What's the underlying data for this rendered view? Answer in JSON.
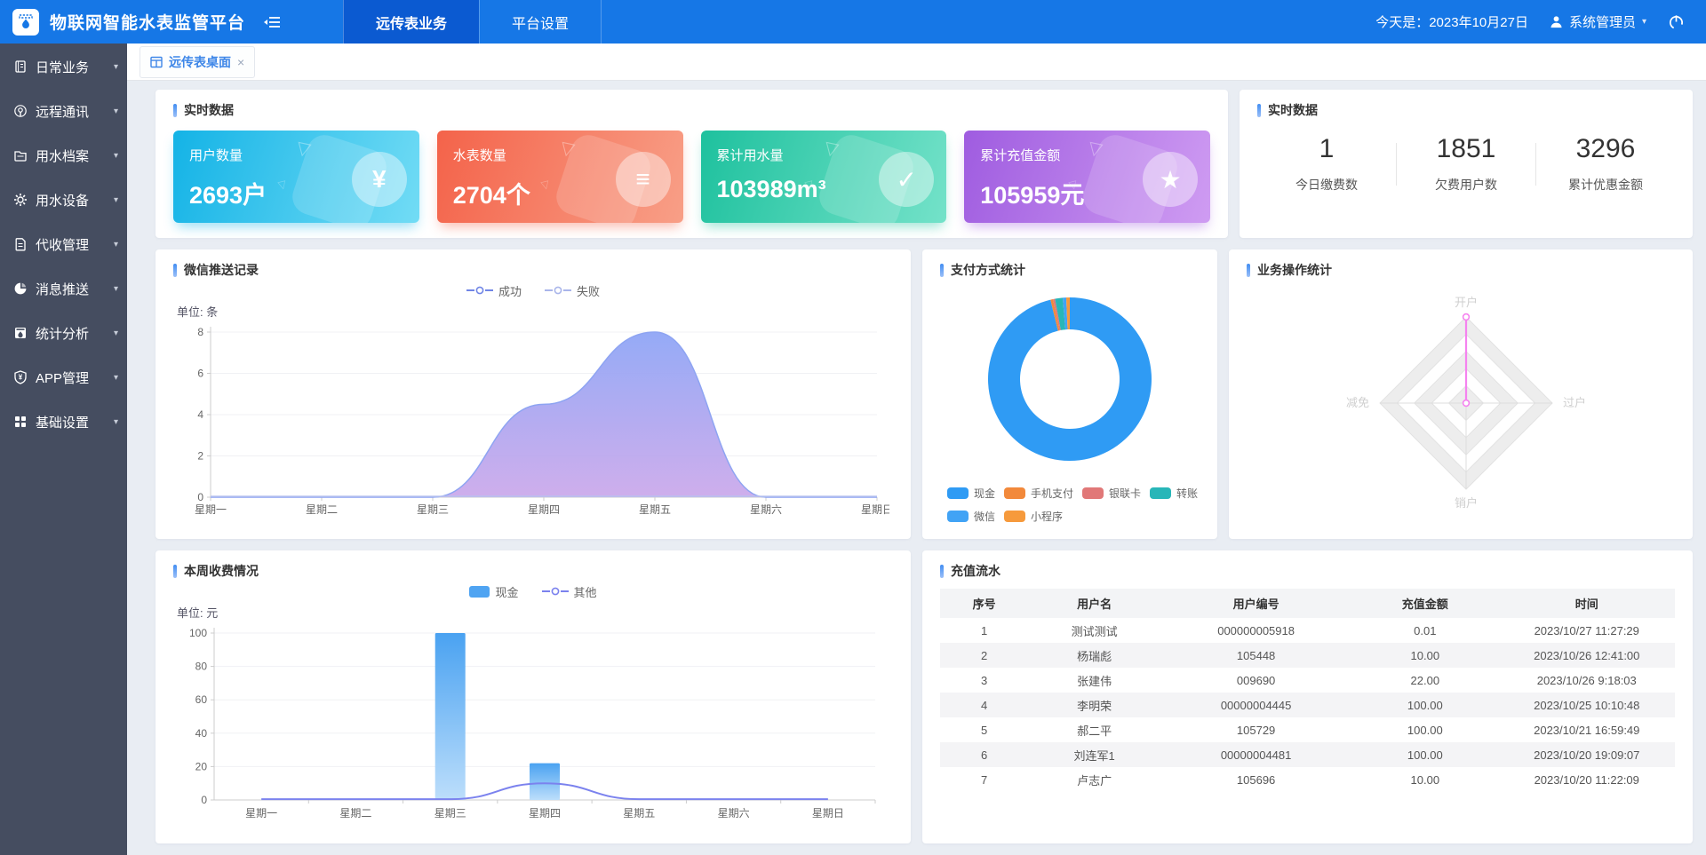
{
  "header": {
    "logo_icon": "water-meter-logo-icon",
    "title": "物联网智能水表监管平台",
    "collapse_icon": "collapse-menu-icon",
    "nav_tabs": [
      {
        "label": "远传表业务",
        "active": true
      },
      {
        "label": "平台设置",
        "active": false
      }
    ],
    "date_text": "今天是：2023年10月27日",
    "user_icon": "user-icon",
    "user": "系统管理员",
    "power_icon": "power-icon",
    "header_color": "#1677e6",
    "active_tab_color": "#0b5ad1"
  },
  "sidebar": {
    "bg_color": "#454d60",
    "items": [
      {
        "label": "日常业务",
        "icon": "daily-business-icon"
      },
      {
        "label": "远程通讯",
        "icon": "remote-comm-icon"
      },
      {
        "label": "用水档案",
        "icon": "water-archive-icon"
      },
      {
        "label": "用水设备",
        "icon": "water-device-icon"
      },
      {
        "label": "代收管理",
        "icon": "collection-mgmt-icon"
      },
      {
        "label": "消息推送",
        "icon": "message-push-icon"
      },
      {
        "label": "统计分析",
        "icon": "stats-analysis-icon"
      },
      {
        "label": "APP管理",
        "icon": "app-mgmt-icon"
      },
      {
        "label": "基础设置",
        "icon": "basic-settings-icon"
      }
    ]
  },
  "tabbar": {
    "tab_icon": "desktop-table-icon",
    "active_tab": "远传表桌面",
    "close_icon": "close-icon"
  },
  "realtime_left": {
    "title": "实时数据",
    "cards": [
      {
        "name": "users",
        "label": "用户数量",
        "value": "2693户",
        "icon": "yuan-circle-icon",
        "glyph": "¥",
        "color_from": "#14b3e6",
        "color_to": "#72dcf5"
      },
      {
        "name": "meters",
        "label": "水表数量",
        "value": "2704个",
        "icon": "meter-card-icon",
        "glyph": "≡",
        "color_from": "#f4634a",
        "color_to": "#f89f87"
      },
      {
        "name": "total-water",
        "label": "累计用水量",
        "value": "103989m³",
        "icon": "check-icon",
        "glyph": "✓",
        "color_from": "#1ec19e",
        "color_to": "#74e2c9"
      },
      {
        "name": "total-recharge",
        "label": "累计充值金额",
        "value": "105959元",
        "icon": "star-pad-icon",
        "glyph": "★",
        "color_from": "#9f5ce0",
        "color_to": "#cf9cf2"
      }
    ]
  },
  "realtime_right": {
    "title": "实时数据",
    "stats": [
      {
        "value": "1",
        "label": "今日缴费数"
      },
      {
        "value": "1851",
        "label": "欠费用户数"
      },
      {
        "value": "3296",
        "label": "累计优惠金额"
      }
    ]
  },
  "chart_data": [
    {
      "id": "wechat_push",
      "type": "area",
      "title": "微信推送记录",
      "unit_label": "单位: 条",
      "categories": [
        "星期一",
        "星期二",
        "星期三",
        "星期四",
        "星期五",
        "星期六",
        "星期日"
      ],
      "series": [
        {
          "name": "成功",
          "values": [
            0,
            0,
            0,
            4.5,
            8,
            0,
            0
          ],
          "color": "#7085e6"
        },
        {
          "name": "失败",
          "values": [
            0,
            0,
            0,
            0,
            0,
            0,
            0
          ],
          "color": "#a9b5ea"
        }
      ],
      "ylim": [
        0,
        8
      ],
      "yticks": [
        0,
        2,
        4,
        6,
        8
      ],
      "legend_position": "top-center",
      "grid": true,
      "area_gradient": [
        "#8fa6f6",
        "#c9a5ea"
      ]
    },
    {
      "id": "payment",
      "type": "pie",
      "title": "支付方式统计",
      "legend_position": "bottom-left",
      "slices": [
        {
          "label": "现金",
          "value": 96.2,
          "color": "#2F9BF4"
        },
        {
          "label": "手机支付",
          "value": 0.5,
          "color": "#F2893B"
        },
        {
          "label": "银联卡",
          "value": 0.4,
          "color": "#E17878"
        },
        {
          "label": "转账",
          "value": 1.5,
          "color": "#28B6B8"
        },
        {
          "label": "微信",
          "value": 0.7,
          "color": "#41A3F5"
        },
        {
          "label": "小程序",
          "value": 0.7,
          "color": "#F69A3C"
        }
      ]
    },
    {
      "id": "business_ops",
      "type": "radar",
      "title": "业务操作统计",
      "axes": [
        "开户",
        "过户",
        "销户",
        "减免"
      ],
      "rings": 5,
      "series": [
        {
          "name": "业务操作",
          "values": [
            1,
            0,
            0,
            0
          ]
        }
      ],
      "line_color": "#f583ef",
      "ring_fill": "#ededed",
      "axis_label_color": "#cfcfcf"
    },
    {
      "id": "weekly_fees",
      "type": "bar",
      "title": "本周收费情况",
      "unit_label": "单位: 元",
      "categories": [
        "星期一",
        "星期二",
        "星期三",
        "星期四",
        "星期五",
        "星期六",
        "星期日"
      ],
      "series": [
        {
          "name": "现金",
          "type": "bar",
          "values": [
            0,
            0,
            100,
            22,
            0,
            0,
            0
          ],
          "color_top": "#4AA2F1",
          "color_bottom": "#BCDEFB",
          "legend_color": "#4FA4F2"
        },
        {
          "name": "其他",
          "type": "line",
          "values": [
            0.5,
            0.5,
            0.5,
            10,
            0.5,
            0.5,
            0.5
          ],
          "color": "#7b82ee"
        }
      ],
      "ylim": [
        0,
        100
      ],
      "yticks": [
        0,
        20,
        40,
        60,
        80,
        100
      ],
      "legend_position": "top-center",
      "grid": true
    }
  ],
  "flow_table": {
    "title": "充值流水",
    "columns": [
      "序号",
      "用户名",
      "用户编号",
      "充值金额",
      "时间"
    ],
    "rows": [
      [
        "1",
        "测试测试",
        "000000005918",
        "0.01",
        "2023/10/27 11:27:29"
      ],
      [
        "2",
        "杨瑞彪",
        "105448",
        "10.00",
        "2023/10/26 12:41:00"
      ],
      [
        "3",
        "张建伟",
        "009690",
        "22.00",
        "2023/10/26 9:18:03"
      ],
      [
        "4",
        "李明荣",
        "00000004445",
        "100.00",
        "2023/10/25 10:10:48"
      ],
      [
        "5",
        "郝二平",
        "105729",
        "100.00",
        "2023/10/21 16:59:49"
      ],
      [
        "6",
        "刘连军1",
        "00000004481",
        "100.00",
        "2023/10/20 19:09:07"
      ],
      [
        "7",
        "卢志广",
        "105696",
        "10.00",
        "2023/10/20 11:22:09"
      ]
    ]
  }
}
